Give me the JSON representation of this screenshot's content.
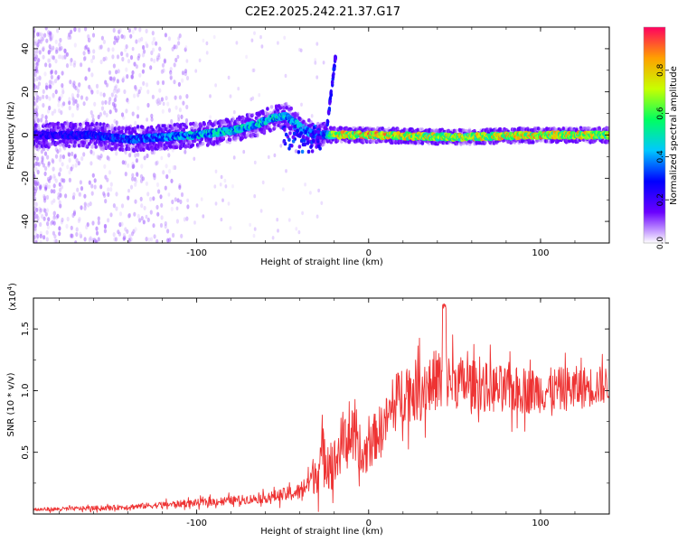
{
  "title": "C2E2.2025.242.21.37.G17",
  "chart_data": [
    {
      "type": "heatmap",
      "xlabel": "Height of straight line (km)",
      "ylabel": "Frequency (Hz)",
      "xlim": [
        -195,
        140
      ],
      "ylim": [
        -50,
        50
      ],
      "x_ticks": [
        -100,
        0,
        100
      ],
      "x_tick_labels": [
        "-100",
        "0",
        "100"
      ],
      "y_ticks": [
        -40,
        -20,
        0,
        20,
        40
      ],
      "y_tick_labels": [
        "-40",
        "-20",
        "0",
        "20",
        "40"
      ],
      "grid": false,
      "colorbar": {
        "label": "Normalized spectral amplitude",
        "range": [
          0,
          1
        ],
        "ticks": [
          0.0,
          0.2,
          0.4,
          0.6,
          0.8
        ],
        "tick_labels": [
          "0.0",
          "0.2",
          "0.4",
          "0.6",
          "0.8"
        ],
        "colormap": [
          "#ffffff",
          "#6a00ff",
          "#0000ff",
          "#00c8ff",
          "#00ff60",
          "#c8ff00",
          "#ffa000",
          "#ff0060"
        ]
      },
      "ridge_center_hz": {
        "x": [
          -195,
          -160,
          -140,
          -120,
          -100,
          -80,
          -65,
          -55,
          -48,
          -40,
          -32,
          -25,
          -20,
          0,
          50,
          100,
          140
        ],
        "y": [
          0,
          0,
          -2,
          -1,
          0,
          2,
          5,
          8,
          9,
          4,
          0,
          0,
          0,
          0,
          -1,
          0,
          0
        ]
      },
      "ridge_peak_amplitude": {
        "x": [
          -195,
          -150,
          -100,
          -60,
          -45,
          -25,
          -20,
          0,
          50,
          100,
          140
        ],
        "y": [
          0.25,
          0.35,
          0.5,
          0.55,
          0.5,
          0.4,
          0.85,
          0.9,
          0.8,
          0.9,
          0.8
        ]
      },
      "annotations": [
        "Upward frequency branch near -22 km reaching ~38 Hz"
      ]
    },
    {
      "type": "line",
      "series": [
        {
          "name": "SNR",
          "color": "#ee3333"
        }
      ],
      "xlabel": "Height of straight line (km)",
      "ylabel": "SNR (10 * v/v)",
      "y_multiplier": "(x10^4)",
      "y_multiplier_base": "(x10",
      "y_multiplier_exp": "4",
      "y_multiplier_close": ")",
      "xlim": [
        -195,
        140
      ],
      "ylim": [
        0,
        17500
      ],
      "x_ticks": [
        -100,
        0,
        100
      ],
      "x_tick_labels": [
        "-100",
        "0",
        "100"
      ],
      "y_ticks": [
        5000,
        10000,
        15000
      ],
      "y_tick_labels": [
        "0.5",
        "1.0",
        "1.5"
      ],
      "grid": false,
      "envelope": {
        "x": [
          -195,
          -150,
          -100,
          -60,
          -40,
          -30,
          -25,
          -20,
          -15,
          -10,
          -5,
          0,
          10,
          20,
          30,
          40,
          60,
          80,
          100,
          120,
          140
        ],
        "mean": [
          350,
          500,
          900,
          1300,
          1800,
          3500,
          5000,
          4000,
          6000,
          6500,
          4000,
          5500,
          7500,
          10000,
          10000,
          11000,
          10500,
          10000,
          10000,
          10200,
          10500
        ],
        "amp": [
          150,
          200,
          300,
          400,
          700,
          1800,
          2800,
          2200,
          2400,
          2200,
          2000,
          2000,
          2000,
          2500,
          2500,
          2500,
          2000,
          2000,
          1800,
          1800,
          1500
        ]
      },
      "annotations": [
        "Peak ~17000 near 45 km"
      ]
    }
  ]
}
